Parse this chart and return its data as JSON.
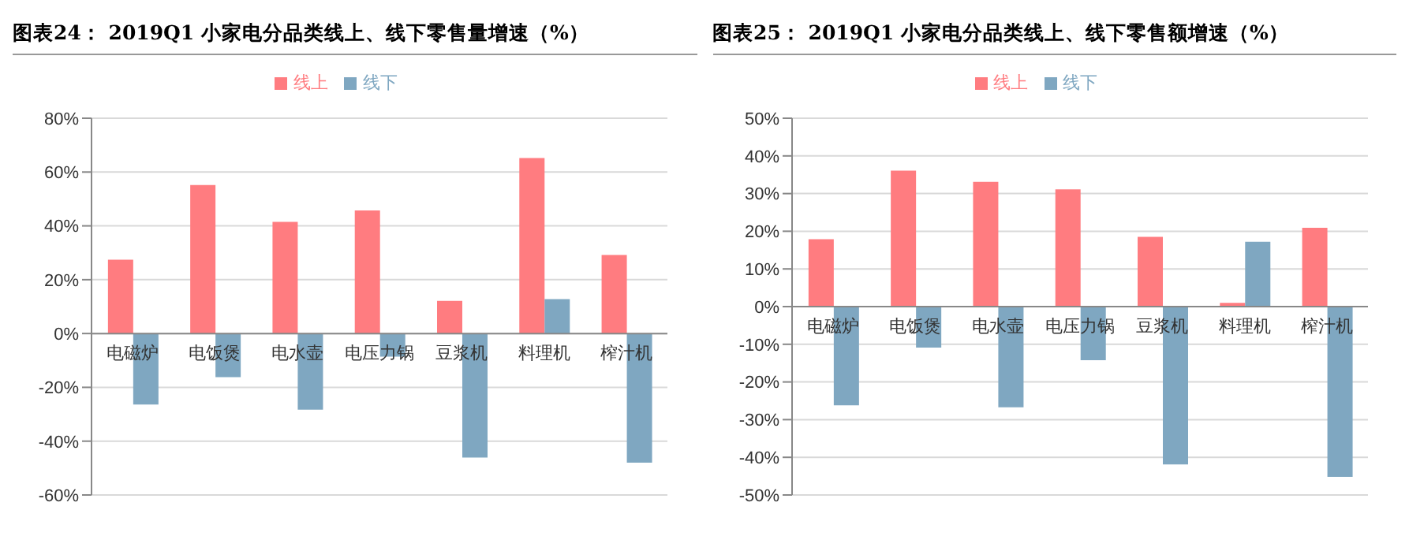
{
  "chart_data": [
    {
      "type": "bar",
      "title": "图表24：  2019Q1 小家电分品类线上、线下零售量增速（%）",
      "categories": [
        "电磁炉",
        "电饭煲",
        "电水壶",
        "电压力锅",
        "豆浆机",
        "料理机",
        "榨汁机"
      ],
      "series": [
        {
          "name": "线上",
          "color": "#ff7c80",
          "values": [
            27.4,
            55.2,
            41.5,
            45.7,
            12.1,
            65.2,
            29.2
          ]
        },
        {
          "name": "线下",
          "color": "#7fa7c1",
          "values": [
            -26.4,
            -16.2,
            -28.3,
            -8.6,
            -46.1,
            12.8,
            -48.0
          ]
        }
      ],
      "ylim": [
        -60,
        80
      ],
      "yticks": [
        {
          "value": -60,
          "label": "-60%"
        },
        {
          "value": -40,
          "label": "-40%"
        },
        {
          "value": -20,
          "label": "-20%"
        },
        {
          "value": 0,
          "label": "0%"
        },
        {
          "value": 20,
          "label": "20%"
        },
        {
          "value": 40,
          "label": "40%"
        },
        {
          "value": 60,
          "label": "60%"
        },
        {
          "value": 80,
          "label": "80%"
        }
      ],
      "grid": "y",
      "legend": "top"
    },
    {
      "type": "bar",
      "title": "图表25：  2019Q1 小家电分品类线上、线下零售额增速（%）",
      "categories": [
        "电磁炉",
        "电饭煲",
        "电水壶",
        "电压力锅",
        "豆浆机",
        "料理机",
        "榨汁机"
      ],
      "series": [
        {
          "name": "线上",
          "color": "#ff7c80",
          "values": [
            17.9,
            36.1,
            33.1,
            31.1,
            18.5,
            1.0,
            20.9
          ]
        },
        {
          "name": "线下",
          "color": "#7fa7c1",
          "values": [
            -26.2,
            -10.9,
            -26.7,
            -14.2,
            -41.9,
            17.2,
            -45.2
          ]
        }
      ],
      "ylim": [
        -50,
        50
      ],
      "yticks": [
        {
          "value": -50,
          "label": "-50%"
        },
        {
          "value": -40,
          "label": "-40%"
        },
        {
          "value": -30,
          "label": "-30%"
        },
        {
          "value": -20,
          "label": "-20%"
        },
        {
          "value": -10,
          "label": "-10%"
        },
        {
          "value": 0,
          "label": "0%"
        },
        {
          "value": 10,
          "label": "10%"
        },
        {
          "value": 20,
          "label": "20%"
        },
        {
          "value": 30,
          "label": "30%"
        },
        {
          "value": 40,
          "label": "40%"
        },
        {
          "value": 50,
          "label": "50%"
        }
      ],
      "grid": "y",
      "legend": "top"
    }
  ]
}
